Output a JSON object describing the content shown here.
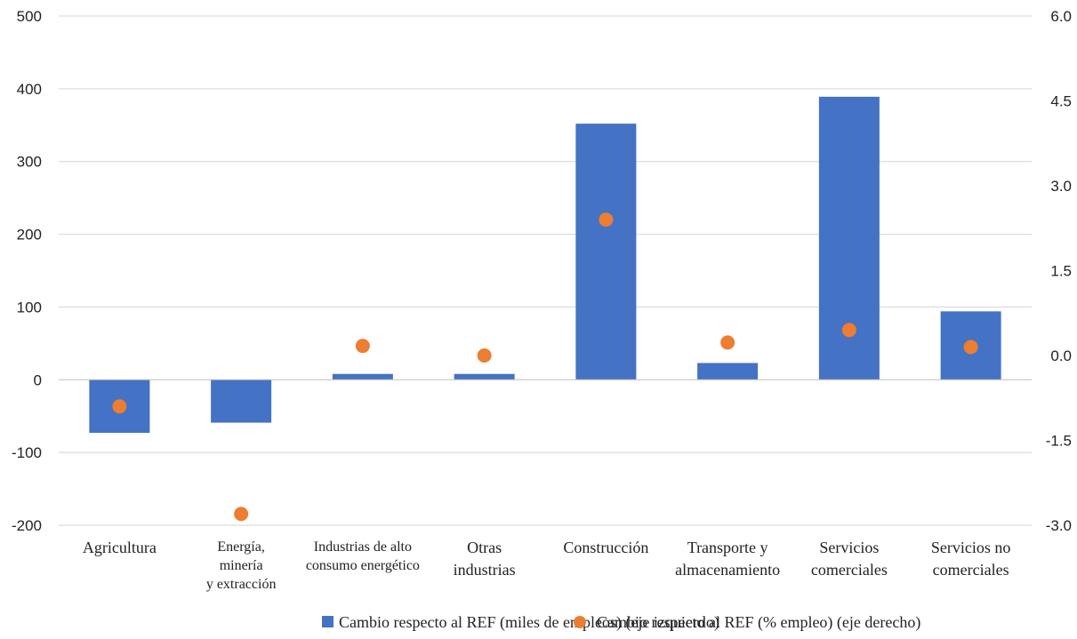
{
  "chart_data": {
    "type": "bar",
    "categories": [
      [
        "Agricultura"
      ],
      [
        "Energía,",
        "minería",
        "y extracción"
      ],
      [
        "Industrias de alto",
        "consumo energético"
      ],
      [
        "Otras",
        "industrias"
      ],
      [
        "Construcción"
      ],
      [
        "Transporte y",
        "almacenamiento"
      ],
      [
        "Servicios",
        "comerciales"
      ],
      [
        "Servicios no",
        "comerciales"
      ]
    ],
    "series": [
      {
        "name": "Cambio respecto al REF (miles de empleos) (eje izquierdo)",
        "type": "bar",
        "axis": "left",
        "color": "#4472C4",
        "values": [
          -73,
          -59,
          8,
          8,
          352,
          23,
          389,
          94
        ]
      },
      {
        "name": "Cambio respecto al REF (% empleo) (eje derecho)",
        "type": "scatter",
        "axis": "right",
        "color": "#ED7D31",
        "values": [
          -0.9,
          -2.8,
          0.17,
          0.0,
          2.4,
          0.23,
          0.45,
          0.15
        ]
      }
    ],
    "y_left": {
      "min": -200,
      "max": 500,
      "ticks": [
        "500",
        "400",
        "300",
        "200",
        "100",
        "0",
        "-100",
        "-200"
      ]
    },
    "y_right": {
      "min": -3.0,
      "max": 6.0,
      "ticks": [
        "6.0",
        "4.5",
        "3.0",
        "1.5",
        "0.0",
        "-1.5",
        "-3.0"
      ]
    },
    "grid": true,
    "legend_position": "bottom"
  }
}
